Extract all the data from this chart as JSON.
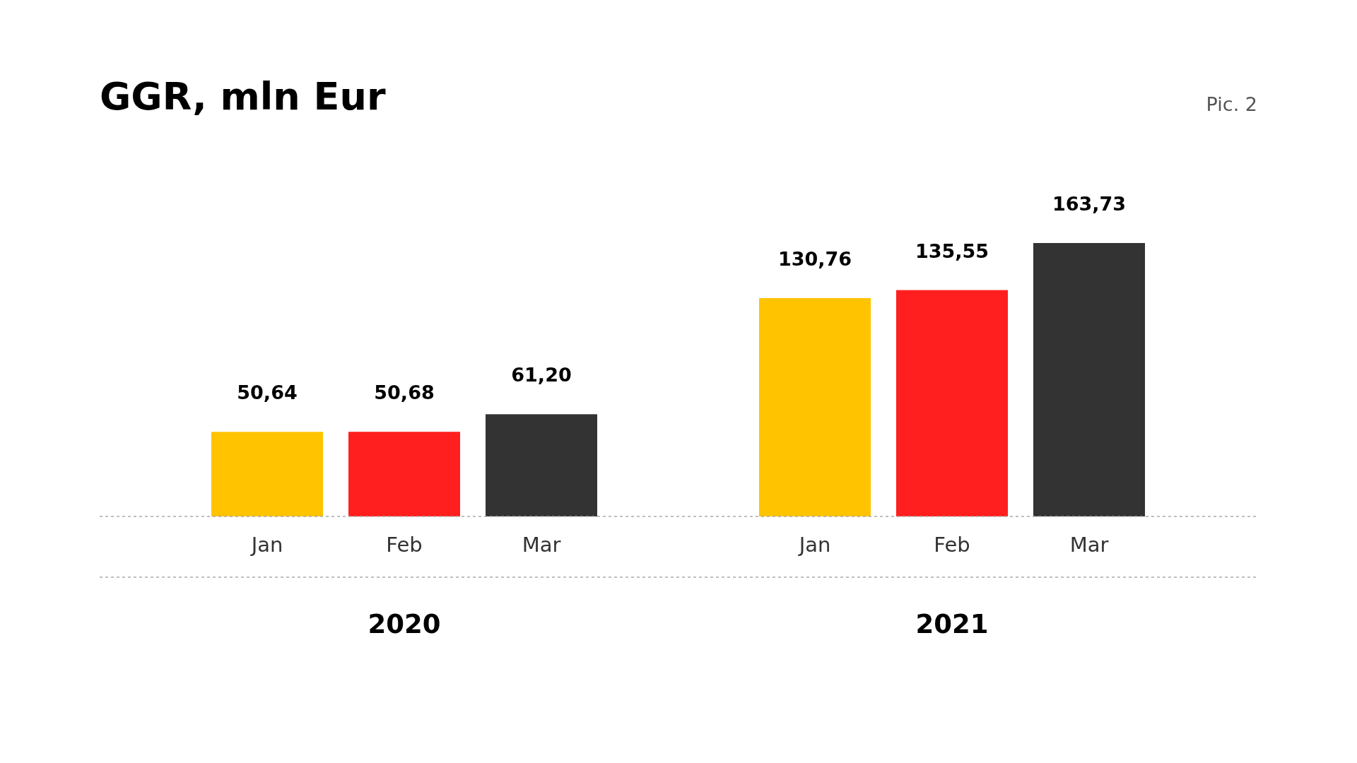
{
  "chart_data": {
    "type": "bar",
    "title": "GGR, mln Eur",
    "categories": [
      "Jan",
      "Feb",
      "Mar",
      "Jan",
      "Feb",
      "Mar"
    ],
    "values": [
      50.64,
      50.68,
      61.2,
      130.76,
      135.55,
      163.73
    ],
    "colors": [
      "#ffc300",
      "#ff1f1f",
      "#333333",
      "#ffc300",
      "#ff1f1f",
      "#333333"
    ],
    "value_labels": [
      "50,64",
      "50,68",
      "61,20",
      "130,76",
      "135,55",
      "163,73"
    ],
    "annotations": [
      "Pic. 2",
      "2020",
      "2021"
    ]
  }
}
